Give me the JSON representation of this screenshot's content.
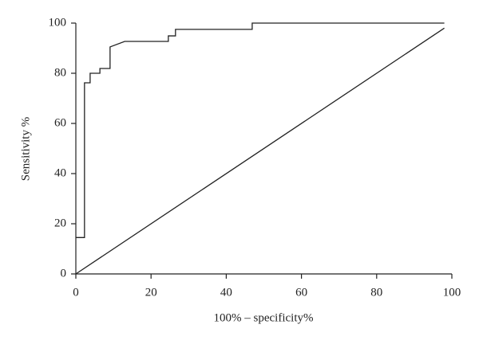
{
  "chart_data": {
    "type": "line",
    "x_label": "100% – specificity%",
    "y_label": "Sensitivity %",
    "series": [
      {
        "color": "#222222",
        "x": [
          0,
          2.3,
          2.3,
          3.8,
          3.8,
          6.4,
          6.4,
          9.1,
          9.1,
          13,
          24.6,
          24.6,
          26.5,
          26.5,
          46.9,
          46.9,
          98
        ],
        "values": [
          14.5,
          14.5,
          76.2,
          76.2,
          80,
          80,
          81.9,
          81.9,
          90.5,
          92.7,
          92.7,
          94.9,
          94.9,
          97.5,
          97.5,
          100,
          100
        ]
      },
      {
        "color": "#222222",
        "x": [
          0,
          98
        ],
        "values": [
          0,
          98
        ]
      }
    ],
    "xlim": [
      0,
      100
    ],
    "xticks": [
      0,
      20,
      40,
      60,
      80,
      100
    ],
    "ylim": [
      0,
      100
    ],
    "yticks": [
      0,
      20,
      40,
      60,
      80,
      100
    ]
  }
}
